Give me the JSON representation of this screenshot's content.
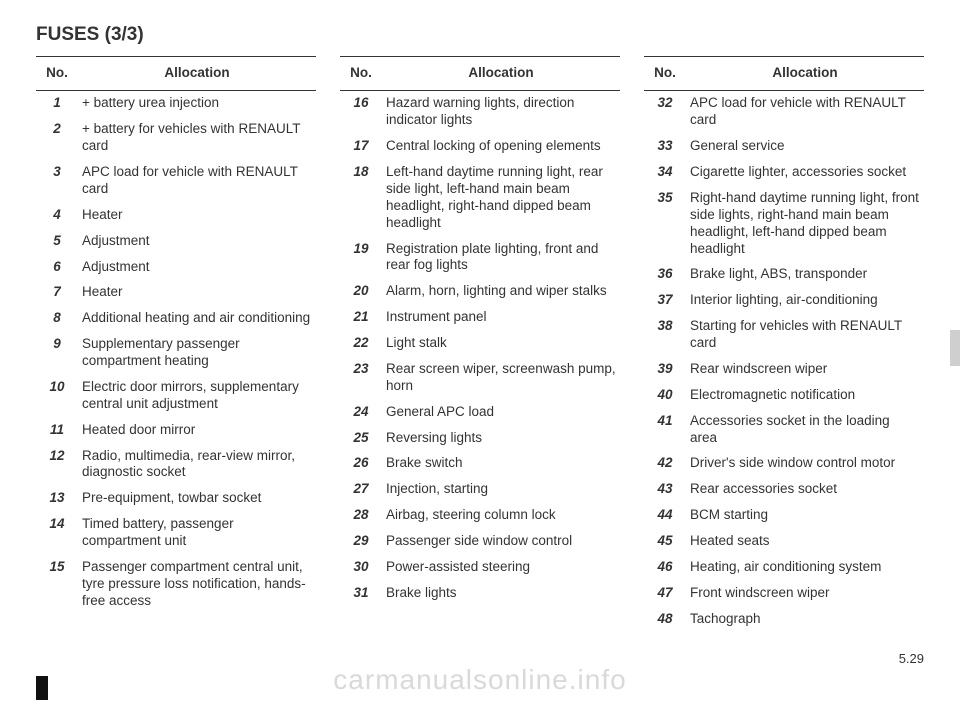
{
  "title": "FUSES (3/3)",
  "pageNumber": "5.29",
  "watermark": "carmanualsonline.info",
  "headers": {
    "no": "No.",
    "allocation": "Allocation"
  },
  "colors": {
    "text": "#333333",
    "background": "#ffffff",
    "watermark": "#d9d9d9",
    "rule": "#333333",
    "tab": "#cfcfcf"
  },
  "tables": [
    {
      "rows": [
        {
          "no": "1",
          "allocation": "+ battery urea injection"
        },
        {
          "no": "2",
          "allocation": "+ battery for vehicles with RENAULT card"
        },
        {
          "no": "3",
          "allocation": "APC load for vehicle with RENAULT card"
        },
        {
          "no": "4",
          "allocation": "Heater"
        },
        {
          "no": "5",
          "allocation": "Adjustment"
        },
        {
          "no": "6",
          "allocation": "Adjustment"
        },
        {
          "no": "7",
          "allocation": "Heater"
        },
        {
          "no": "8",
          "allocation": "Additional heating and air conditioning"
        },
        {
          "no": "9",
          "allocation": "Supplementary passenger compartment heating"
        },
        {
          "no": "10",
          "allocation": "Electric door mirrors, supplementary central unit adjustment"
        },
        {
          "no": "11",
          "allocation": "Heated door mirror"
        },
        {
          "no": "12",
          "allocation": "Radio, multimedia, rear-view mirror, diagnostic socket"
        },
        {
          "no": "13",
          "allocation": "Pre-equipment, towbar socket"
        },
        {
          "no": "14",
          "allocation": "Timed battery, passenger compartment unit"
        },
        {
          "no": "15",
          "allocation": "Passenger compartment central unit, tyre pressure loss notification, hands-free access"
        }
      ]
    },
    {
      "rows": [
        {
          "no": "16",
          "allocation": "Hazard warning lights, direction indicator lights"
        },
        {
          "no": "17",
          "allocation": "Central locking of opening elements"
        },
        {
          "no": "18",
          "allocation": "Left-hand daytime running light, rear side light, left-hand main beam headlight, right-hand dipped beam headlight"
        },
        {
          "no": "19",
          "allocation": "Registration plate lighting, front and rear fog lights"
        },
        {
          "no": "20",
          "allocation": "Alarm, horn, lighting and wiper stalks"
        },
        {
          "no": "21",
          "allocation": "Instrument panel"
        },
        {
          "no": "22",
          "allocation": "Light stalk"
        },
        {
          "no": "23",
          "allocation": "Rear screen wiper, screenwash pump, horn"
        },
        {
          "no": "24",
          "allocation": "General APC load"
        },
        {
          "no": "25",
          "allocation": "Reversing lights"
        },
        {
          "no": "26",
          "allocation": "Brake switch"
        },
        {
          "no": "27",
          "allocation": "Injection, starting"
        },
        {
          "no": "28",
          "allocation": "Airbag, steering column lock"
        },
        {
          "no": "29",
          "allocation": "Passenger side window control"
        },
        {
          "no": "30",
          "allocation": "Power-assisted steering"
        },
        {
          "no": "31",
          "allocation": "Brake lights"
        }
      ]
    },
    {
      "rows": [
        {
          "no": "32",
          "allocation": "APC load for vehicle with RENAULT card"
        },
        {
          "no": "33",
          "allocation": "General service"
        },
        {
          "no": "34",
          "allocation": "Cigarette lighter, accessories socket"
        },
        {
          "no": "35",
          "allocation": "Right-hand daytime running light, front side lights, right-hand main beam headlight, left-hand dipped beam headlight"
        },
        {
          "no": "36",
          "allocation": "Brake light, ABS, transponder"
        },
        {
          "no": "37",
          "allocation": "Interior lighting, air-conditioning"
        },
        {
          "no": "38",
          "allocation": "Starting for vehicles with RENAULT card"
        },
        {
          "no": "39",
          "allocation": "Rear windscreen wiper"
        },
        {
          "no": "40",
          "allocation": "Electromagnetic notification"
        },
        {
          "no": "41",
          "allocation": "Accessories socket in the loading area"
        },
        {
          "no": "42",
          "allocation": "Driver's side window control motor"
        },
        {
          "no": "43",
          "allocation": "Rear accessories socket"
        },
        {
          "no": "44",
          "allocation": "BCM starting"
        },
        {
          "no": "45",
          "allocation": "Heated seats"
        },
        {
          "no": "46",
          "allocation": "Heating, air conditioning system"
        },
        {
          "no": "47",
          "allocation": "Front windscreen wiper"
        },
        {
          "no": "48",
          "allocation": "Tachograph"
        }
      ]
    }
  ]
}
